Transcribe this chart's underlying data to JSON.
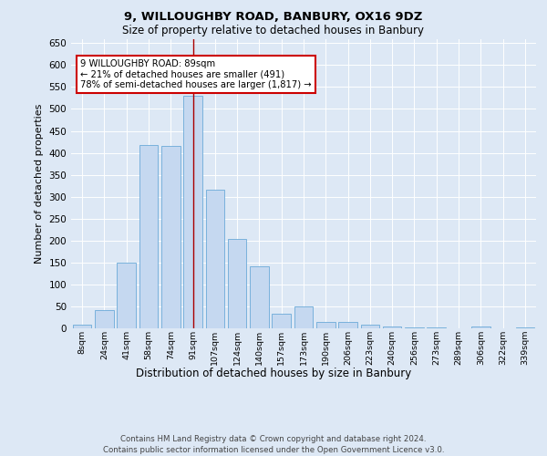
{
  "title1": "9, WILLOUGHBY ROAD, BANBURY, OX16 9DZ",
  "title2": "Size of property relative to detached houses in Banbury",
  "xlabel": "Distribution of detached houses by size in Banbury",
  "ylabel": "Number of detached properties",
  "footer1": "Contains HM Land Registry data © Crown copyright and database right 2024.",
  "footer2": "Contains public sector information licensed under the Open Government Licence v3.0.",
  "annotation_line1": "9 WILLOUGHBY ROAD: 89sqm",
  "annotation_line2": "← 21% of detached houses are smaller (491)",
  "annotation_line3": "78% of semi-detached houses are larger (1,817) →",
  "property_sqm": 89,
  "bar_color": "#c5d8f0",
  "bar_edge_color": "#6baad8",
  "vline_color": "#aa0000",
  "annotation_box_color": "#ffffff",
  "annotation_box_edge": "#cc0000",
  "background_color": "#dde8f5",
  "categories": [
    "8sqm",
    "24sqm",
    "41sqm",
    "58sqm",
    "74sqm",
    "91sqm",
    "107sqm",
    "124sqm",
    "140sqm",
    "157sqm",
    "173sqm",
    "190sqm",
    "206sqm",
    "223sqm",
    "240sqm",
    "256sqm",
    "273sqm",
    "289sqm",
    "306sqm",
    "322sqm",
    "339sqm"
  ],
  "values": [
    8,
    42,
    150,
    417,
    416,
    530,
    315,
    204,
    142,
    33,
    49,
    15,
    14,
    8,
    5,
    3,
    2,
    1,
    5,
    1,
    3
  ],
  "ylim": [
    0,
    660
  ],
  "yticks": [
    0,
    50,
    100,
    150,
    200,
    250,
    300,
    350,
    400,
    450,
    500,
    550,
    600,
    650
  ],
  "vline_bin_index": 5,
  "figsize": [
    6.0,
    5.0
  ],
  "dpi": 100
}
